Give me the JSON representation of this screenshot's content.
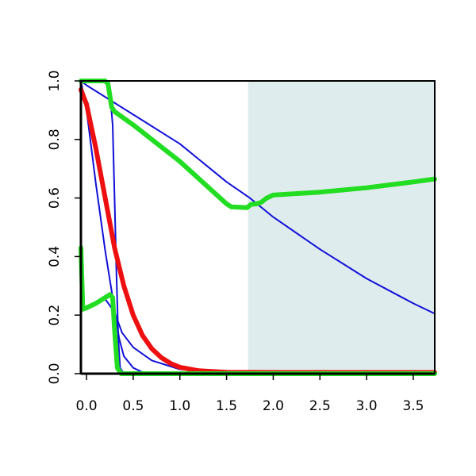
{
  "chart_data": {
    "type": "line",
    "title": "",
    "xlabel": "",
    "ylabel": "",
    "xlim": [
      -0.06,
      3.73
    ],
    "ylim": [
      0.0,
      1.0
    ],
    "x_ticks": [
      0.0,
      0.5,
      1.0,
      1.5,
      2.0,
      2.5,
      3.0,
      3.5
    ],
    "x_tick_labels": [
      "0.0",
      "0.5",
      "1.0",
      "1.5",
      "2.0",
      "2.5",
      "3.0",
      "3.5"
    ],
    "y_ticks": [
      0.0,
      0.2,
      0.4,
      0.6,
      0.8,
      1.0
    ],
    "y_tick_labels": [
      "0.0",
      "0.2",
      "0.4",
      "0.6",
      "0.8",
      "1.0"
    ],
    "grid": false,
    "legend": "none",
    "shaded_region": {
      "x_from": 1.73,
      "x_to": 3.73,
      "color": "#dfeced"
    },
    "series": [
      {
        "color": "#1010d8",
        "width": "thin",
        "points": [
          [
            -0.06,
            1.0
          ],
          [
            0.0,
            0.985
          ],
          [
            0.5,
            0.885
          ],
          [
            1.0,
            0.785
          ],
          [
            1.5,
            0.655
          ],
          [
            1.75,
            0.6
          ],
          [
            2.0,
            0.535
          ],
          [
            2.5,
            0.425
          ],
          [
            3.0,
            0.325
          ],
          [
            3.5,
            0.24
          ],
          [
            3.73,
            0.205
          ]
        ]
      },
      {
        "color": "#1010d8",
        "width": "thin",
        "points": [
          [
            -0.06,
            1.0
          ],
          [
            0.0,
            0.9
          ],
          [
            0.1,
            0.65
          ],
          [
            0.2,
            0.42
          ],
          [
            0.3,
            0.22
          ],
          [
            0.35,
            0.12
          ],
          [
            0.4,
            0.06
          ],
          [
            0.5,
            0.02
          ],
          [
            0.6,
            0.005
          ],
          [
            0.8,
            0.0
          ],
          [
            3.73,
            0.0
          ]
        ]
      },
      {
        "color": "#1010d8",
        "width": "thin",
        "points": [
          [
            0.24,
            1.0
          ],
          [
            0.28,
            0.85
          ],
          [
            0.3,
            0.6
          ],
          [
            0.32,
            0.35
          ],
          [
            0.34,
            0.12
          ],
          [
            0.36,
            0.02
          ],
          [
            0.4,
            0.0
          ],
          [
            3.73,
            0.0
          ]
        ]
      },
      {
        "color": "#1010d8",
        "width": "thin",
        "points": [
          [
            0.2,
            0.255
          ],
          [
            0.3,
            0.21
          ],
          [
            0.38,
            0.14
          ],
          [
            0.5,
            0.09
          ],
          [
            0.7,
            0.045
          ],
          [
            1.0,
            0.015
          ],
          [
            1.5,
            0.002
          ],
          [
            2.0,
            0.0
          ],
          [
            3.73,
            0.0
          ]
        ]
      },
      {
        "color": "#ee1010",
        "width": "thick",
        "points": [
          [
            -0.06,
            0.97
          ],
          [
            0.0,
            0.92
          ],
          [
            0.1,
            0.77
          ],
          [
            0.2,
            0.6
          ],
          [
            0.3,
            0.43
          ],
          [
            0.4,
            0.3
          ],
          [
            0.5,
            0.2
          ],
          [
            0.6,
            0.13
          ],
          [
            0.7,
            0.085
          ],
          [
            0.8,
            0.055
          ],
          [
            0.9,
            0.035
          ],
          [
            1.0,
            0.022
          ],
          [
            1.2,
            0.01
          ],
          [
            1.5,
            0.005
          ],
          [
            2.0,
            0.004
          ],
          [
            3.73,
            0.004
          ]
        ]
      },
      {
        "color": "#22dd22",
        "width": "thick",
        "points": [
          [
            -0.06,
            1.0
          ],
          [
            0.2,
            1.0
          ],
          [
            0.23,
            0.99
          ],
          [
            0.25,
            0.95
          ],
          [
            0.27,
            0.91
          ],
          [
            0.3,
            0.895
          ],
          [
            0.5,
            0.85
          ],
          [
            1.0,
            0.725
          ],
          [
            1.5,
            0.58
          ],
          [
            1.55,
            0.57
          ],
          [
            1.72,
            0.567
          ],
          [
            1.76,
            0.578
          ],
          [
            1.82,
            0.58
          ],
          [
            1.87,
            0.585
          ],
          [
            1.93,
            0.6
          ],
          [
            2.0,
            0.61
          ],
          [
            2.5,
            0.62
          ],
          [
            3.0,
            0.635
          ],
          [
            3.5,
            0.655
          ],
          [
            3.73,
            0.665
          ]
        ]
      },
      {
        "color": "#22dd22",
        "width": "thick",
        "points": [
          [
            -0.06,
            0.43
          ],
          [
            -0.04,
            0.22
          ],
          [
            0.0,
            0.225
          ],
          [
            0.1,
            0.24
          ],
          [
            0.2,
            0.26
          ],
          [
            0.25,
            0.27
          ],
          [
            0.28,
            0.26
          ],
          [
            0.3,
            0.15
          ],
          [
            0.33,
            0.02
          ],
          [
            0.37,
            0.0
          ],
          [
            3.73,
            0.0
          ]
        ]
      }
    ]
  }
}
